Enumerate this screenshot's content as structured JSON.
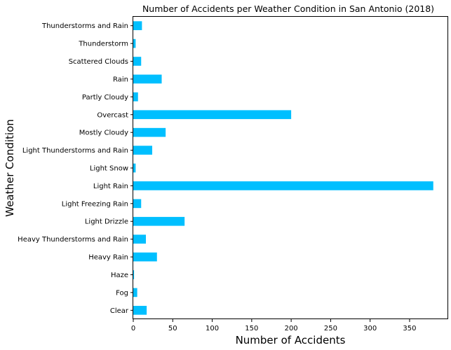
{
  "chart_data": {
    "type": "bar",
    "orientation": "horizontal",
    "title": "Number of Accidents per Weather Condition in San Antonio (2018)",
    "xlabel": "Number of Accidents",
    "ylabel": "Weather Condition",
    "categories": [
      "Clear",
      "Fog",
      "Haze",
      "Heavy Rain",
      "Heavy Thunderstorms and Rain",
      "Light Drizzle",
      "Light Freezing Rain",
      "Light Rain",
      "Light Snow",
      "Light Thunderstorms and Rain",
      "Mostly Cloudy",
      "Overcast",
      "Partly Cloudy",
      "Rain",
      "Scattered Clouds",
      "Thunderstorm",
      "Thunderstorms and Rain"
    ],
    "values": [
      17,
      5,
      1,
      30,
      16,
      65,
      10,
      380,
      3,
      24,
      41,
      200,
      6,
      36,
      10,
      3,
      11
    ],
    "xlim": [
      0,
      398
    ],
    "xticks": [
      0,
      50,
      100,
      150,
      200,
      250,
      300,
      350
    ],
    "grid": false,
    "legend": false,
    "bar_color": "#00bfff"
  }
}
